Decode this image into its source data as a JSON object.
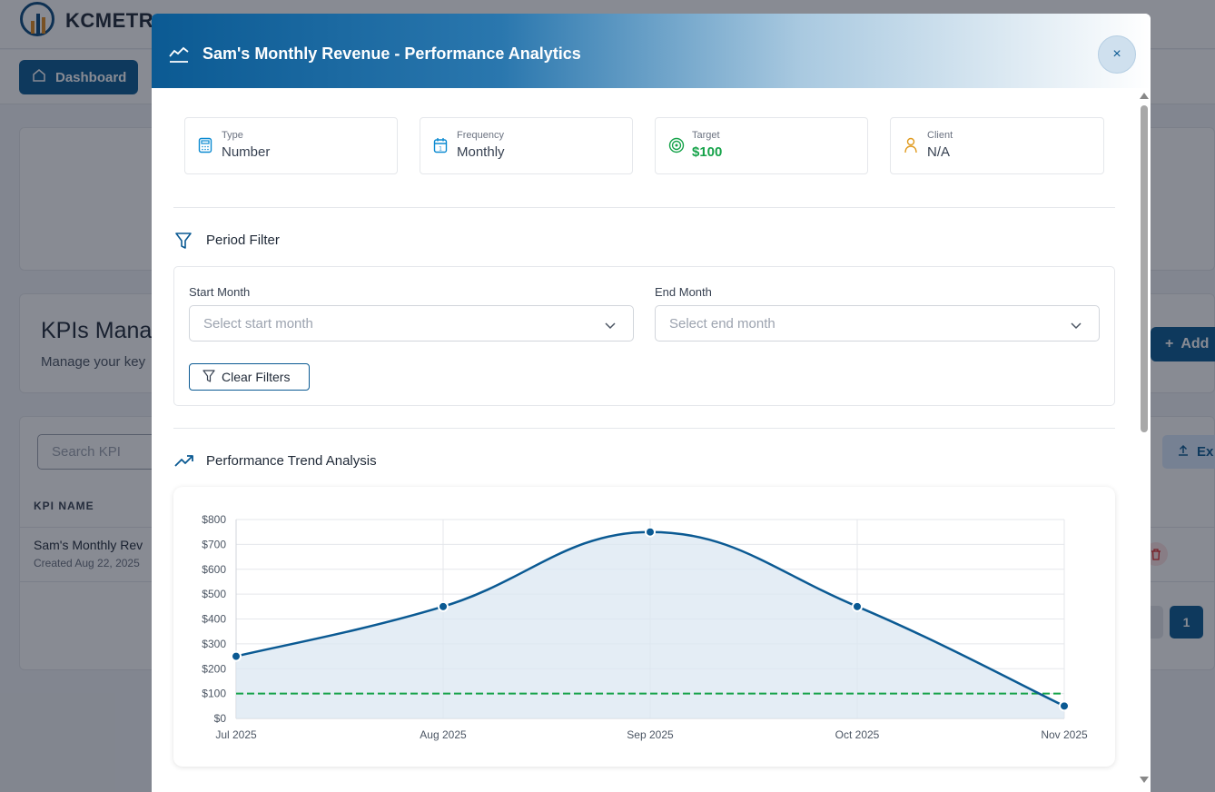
{
  "app": {
    "brand": "KCMETR",
    "nav_dashboard": "Dashboard",
    "kpi_title": "KPIs Mana",
    "kpi_subtitle": "Manage your key",
    "add_button": "Add",
    "search_placeholder": "Search KPI",
    "export_button": "Ex",
    "table_header_name": "KPI NAME",
    "row": {
      "name": "Sam's Monthly Rev",
      "created": "Created Aug 22, 2025"
    },
    "page_current": "1"
  },
  "modal": {
    "title": "Sam's Monthly Revenue - Performance Analytics",
    "close_label": "×",
    "info_cards": [
      {
        "label": "Type",
        "value": "Number",
        "icon": "calculator-icon"
      },
      {
        "label": "Frequency",
        "value": "Monthly",
        "icon": "calendar-icon"
      },
      {
        "label": "Target",
        "value": "$100",
        "icon": "target-icon"
      },
      {
        "label": "Client",
        "value": "N/A",
        "icon": "user-icon"
      }
    ],
    "period_filter": {
      "title": "Period Filter",
      "start_label": "Start Month",
      "start_placeholder": "Select start month",
      "end_label": "End Month",
      "end_placeholder": "Select end month",
      "clear_button": "Clear Filters"
    },
    "trend_title": "Performance Trend Analysis"
  },
  "colors": {
    "primary": "#0b5a93",
    "line": "#0b5a93",
    "fill": "#dbe7f2",
    "target": "#16a34a"
  },
  "chart_data": {
    "type": "area",
    "x": [
      "Jul 2025",
      "Aug 2025",
      "Sep 2025",
      "Oct 2025",
      "Nov 2025"
    ],
    "series": [
      {
        "values": [
          250,
          450,
          750,
          450,
          50
        ]
      }
    ],
    "target_line": 100,
    "ylim": [
      0,
      800
    ],
    "yticks": [
      "$0",
      "$100",
      "$200",
      "$300",
      "$400",
      "$500",
      "$600",
      "$700",
      "$800"
    ],
    "ytick_values": [
      0,
      100,
      200,
      300,
      400,
      500,
      600,
      700,
      800
    ],
    "grid": true
  }
}
